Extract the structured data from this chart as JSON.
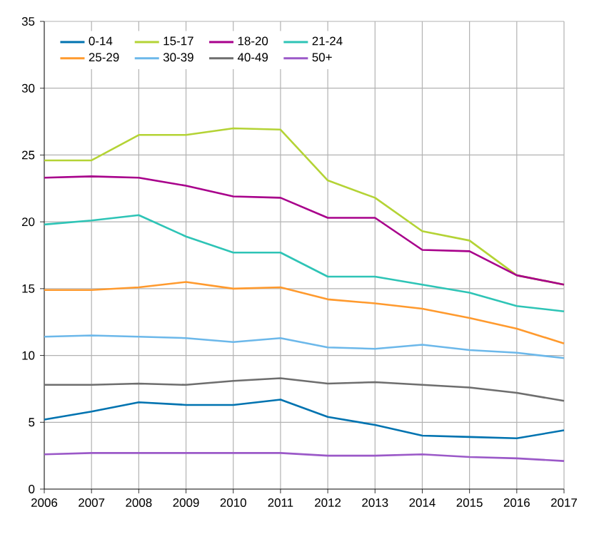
{
  "chart_data": {
    "type": "line",
    "x": [
      2006,
      2007,
      2008,
      2009,
      2010,
      2011,
      2012,
      2013,
      2014,
      2015,
      2016,
      2017
    ],
    "xlim": [
      2006,
      2017
    ],
    "xticks": [
      2006,
      2007,
      2008,
      2009,
      2010,
      2011,
      2012,
      2013,
      2014,
      2015,
      2016,
      2017
    ],
    "ylim": [
      0,
      35
    ],
    "yticks": [
      0,
      5,
      10,
      15,
      20,
      25,
      30,
      35
    ],
    "grid": true,
    "legend": "top left",
    "marker": "none",
    "line_style": "solid",
    "series": [
      {
        "name": "0-14",
        "color": "#0073b0",
        "values": [
          5.2,
          5.8,
          6.5,
          6.3,
          6.3,
          6.7,
          5.4,
          4.8,
          4.0,
          3.9,
          3.8,
          4.4
        ]
      },
      {
        "name": "15-17",
        "color": "#b4d335",
        "values": [
          24.6,
          24.6,
          26.5,
          26.5,
          27.0,
          26.9,
          23.1,
          21.8,
          19.3,
          18.6,
          16.0,
          15.3
        ]
      },
      {
        "name": "18-20",
        "color": "#a8008b",
        "values": [
          23.3,
          23.4,
          23.3,
          22.7,
          21.9,
          21.8,
          20.3,
          20.3,
          17.9,
          17.8,
          16.0,
          15.3
        ]
      },
      {
        "name": "21-24",
        "color": "#2ec4b6",
        "values": [
          19.8,
          20.1,
          20.5,
          18.9,
          17.7,
          17.7,
          15.9,
          15.9,
          15.3,
          14.7,
          13.7,
          13.3
        ]
      },
      {
        "name": "25-29",
        "color": "#ff9a2e",
        "values": [
          14.9,
          14.9,
          15.1,
          15.5,
          15.0,
          15.1,
          14.2,
          13.9,
          13.5,
          12.8,
          12.0,
          10.9
        ]
      },
      {
        "name": "30-39",
        "color": "#6cb8ea",
        "values": [
          11.4,
          11.5,
          11.4,
          11.3,
          11.0,
          11.3,
          10.6,
          10.5,
          10.8,
          10.4,
          10.2,
          9.8
        ]
      },
      {
        "name": "40-49",
        "color": "#6e6e6e",
        "values": [
          7.8,
          7.8,
          7.9,
          7.8,
          8.1,
          8.3,
          7.9,
          8.0,
          7.8,
          7.6,
          7.2,
          6.6
        ]
      },
      {
        "name": "50+",
        "color": "#9b59c8",
        "values": [
          2.6,
          2.7,
          2.7,
          2.7,
          2.7,
          2.7,
          2.5,
          2.5,
          2.6,
          2.4,
          2.3,
          2.1
        ]
      }
    ]
  }
}
